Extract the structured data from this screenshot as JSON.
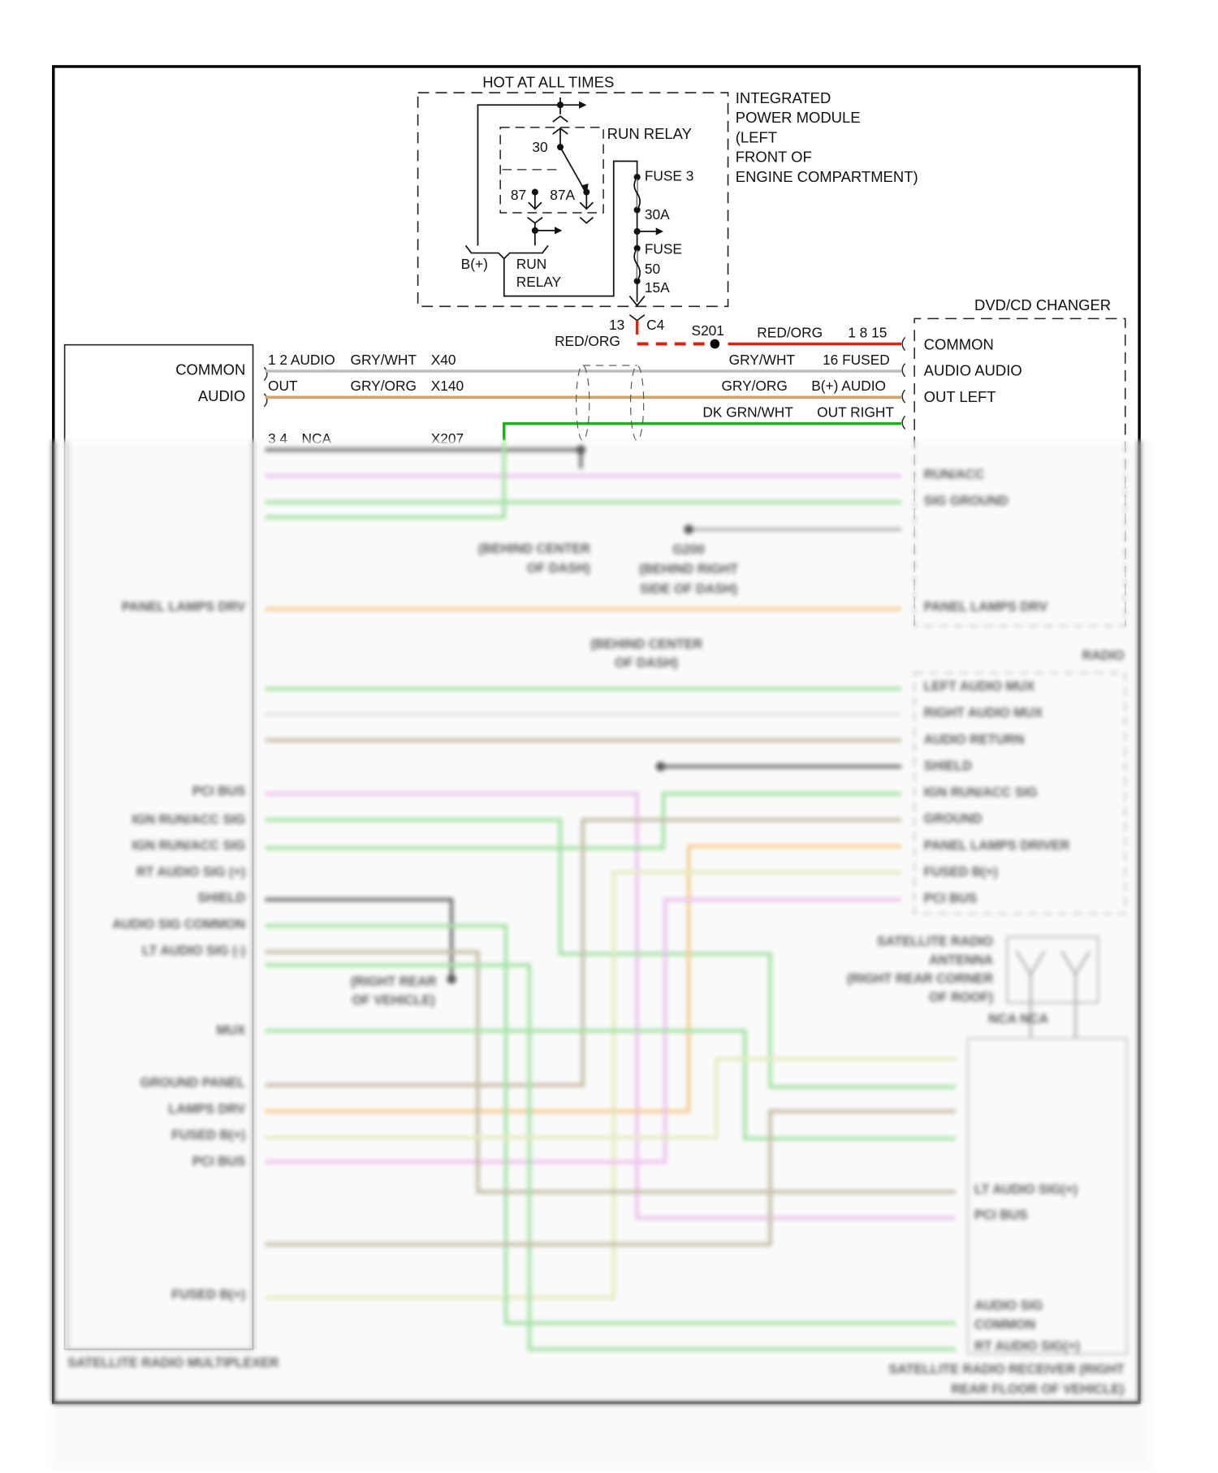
{
  "ipm": {
    "hot_label": "HOT AT ALL TIMES",
    "title_lines": [
      "INTEGRATED",
      "POWER MODULE",
      "(LEFT",
      "FRONT OF",
      "ENGINE COMPARTMENT)"
    ],
    "run_relay_label": "RUN RELAY",
    "pin_30": "30",
    "pin_87": "87",
    "pin_87a": "87A",
    "bplus": "B(+)",
    "run_relay_feed": [
      "RUN",
      "RELAY"
    ],
    "fuse3": "FUSE 3",
    "fuse3_rating": "30A",
    "fuse50_lines": [
      "FUSE",
      "50",
      "15A"
    ]
  },
  "connector_c4": {
    "pin": "13",
    "name": "C4",
    "wire": "RED/ORG"
  },
  "splice_s201": "S201",
  "dvd": {
    "title": "DVD/CD CHANGER",
    "pins": [
      "COMMON",
      "AUDIO AUDIO",
      "OUT LEFT"
    ],
    "wire_red": "RED/ORG",
    "wire_red_pins": "1 8 15",
    "wire_gry_wht": "GRY/WHT",
    "overlap_16_fused": "16 FUSED",
    "wire_gry_org": "GRY/ORG",
    "overlap_bplus_audio": "B(+) AUDIO",
    "wire_dk_grn_wht": "DK GRN/WHT",
    "overlap_out_right": "OUT RIGHT"
  },
  "multiplexer": {
    "pins": [
      "COMMON",
      "AUDIO"
    ],
    "wire1_pins": "1 2 AUDIO",
    "wire1_color": "GRY/WHT",
    "wire1_circuit": "X40",
    "wire2_pins": "OUT",
    "wire2_color": "GRY/ORG",
    "wire2_circuit": "X140",
    "wire3_pins": "3 4",
    "wire3_color": "NCA",
    "wire3_circuit": "X207"
  },
  "blurred": {
    "left_labels": [
      "PANEL LAMPS DRV",
      "PCI BUS",
      "IGN RUN/ACC SIG",
      "IGN RUN/ACC SIG",
      "RT AUDIO SIG (+)",
      "SHIELD",
      "AUDIO SIG COMMON",
      "LT AUDIO SIG (-)",
      "MUX",
      "GROUND PANEL",
      "LAMPS DRV",
      "FUSED B(+)",
      "PCI BUS",
      "FUSED B(+)"
    ],
    "dvd_labels": [
      "RUN/ACC",
      "SIG GROUND",
      "PANEL LAMPS DRV"
    ],
    "radio_title": "RADIO",
    "radio_labels": [
      "LEFT AUDIO MUX",
      "RIGHT AUDIO MUX",
      "AUDIO RETURN",
      "SHIELD",
      "IGN RUN/ACC SIG",
      "GROUND",
      "PANEL LAMPS DRIVER",
      "FUSED B(+)",
      "PCI BUS"
    ],
    "receiver_labels": [
      "LT AUDIO SIG(+)",
      "PCI BUS",
      "AUDIO SIG",
      "COMMON",
      "RT AUDIO SIG(+)"
    ],
    "receiver_title": [
      "SATELLITE RADIO RECEIVER (RIGHT",
      "REAR FLOOR OF VEHICLE)"
    ],
    "antenna_title": [
      "SATELLITE RADIO",
      "ANTENNA",
      "(RIGHT REAR CORNER",
      "OF ROOF)"
    ],
    "antenna_pins": "NCA NCA",
    "splice1": [
      "(BEHIND CENTER",
      "OF DASH)"
    ],
    "ground_g200": [
      "G200",
      "(BEHIND RIGHT",
      "SIDE OF DASH)"
    ],
    "splice2": [
      "(BEHIND CENTER",
      "OF DASH)"
    ],
    "ground_rear": [
      "(RIGHT REAR",
      "OF VEHICLE)"
    ],
    "multiplexer_title": "SATELLITE RADIO MULTIPLEXER"
  },
  "colors": {
    "red_org": "#e02010",
    "gry": "#bdbdbd",
    "gry_org": "#d4a36a",
    "dk_grn": "#1fb01f",
    "pink": "#e8b5ea",
    "lt_green": "#8fdc8f",
    "orange": "#f4c07a",
    "tan": "#b8ad92",
    "dark": "#555555"
  }
}
